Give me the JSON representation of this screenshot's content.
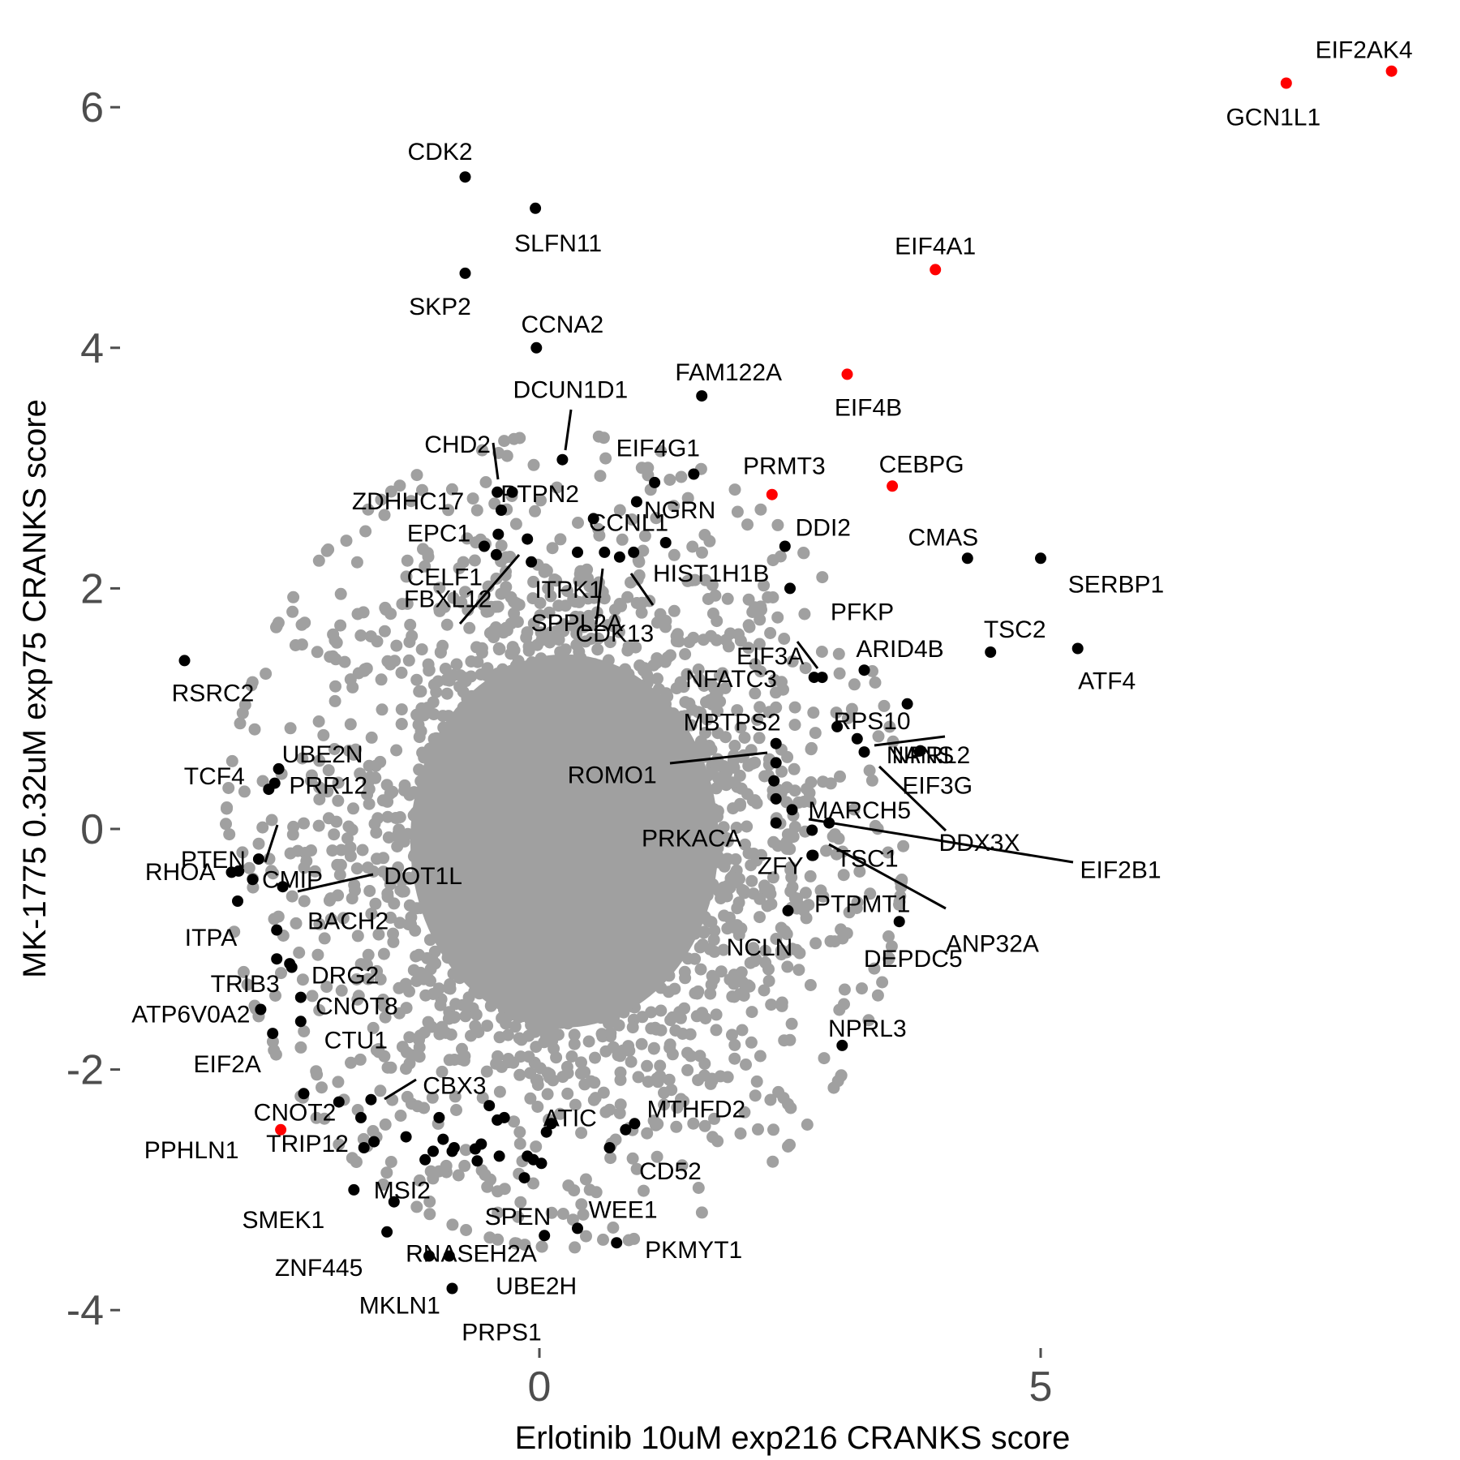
{
  "chart_data": {
    "type": "scatter",
    "xlabel": "Erlotinib 10uM exp216 CRANKS score",
    "ylabel": "MK-1775 0.32uM exp75 CRANKS score",
    "xlim": [
      -5.35,
      9.05
    ],
    "ylim": [
      -4.3,
      6.62
    ],
    "x_ticks": [
      0,
      5
    ],
    "x_tick_labels": [
      "0",
      "5"
    ],
    "y_ticks": [
      -4,
      -2,
      0,
      2,
      4,
      6
    ],
    "y_tick_labels": [
      "-4",
      "-2",
      "0",
      "2",
      "4",
      "6"
    ],
    "grid": false,
    "legend": "none",
    "colors": {
      "background_points": "#a0a0a0",
      "highlighted": "#000000",
      "red": "#ff0000",
      "axis_text": "#4d4d4d"
    },
    "background_cloud": {
      "description": "dense gray point cloud",
      "center": [
        0.25,
        -0.1
      ],
      "spread": [
        1.3,
        1.3
      ],
      "n": 2600
    },
    "labeled_points": [
      {
        "label": "EIF2AK4",
        "x": 8.5,
        "y": 6.3,
        "color": "red"
      },
      {
        "label": "GCN1L1",
        "x": 7.45,
        "y": 6.2,
        "color": "red"
      },
      {
        "label": "EIF4A1",
        "x": 3.95,
        "y": 4.65,
        "color": "red"
      },
      {
        "label": "EIF4B",
        "x": 3.07,
        "y": 3.78,
        "color": "red"
      },
      {
        "label": "CEBPG",
        "x": 3.52,
        "y": 2.85,
        "color": "red"
      },
      {
        "label": "PRMT3",
        "x": 2.32,
        "y": 2.78,
        "color": "red"
      },
      {
        "label": "PPHLN1",
        "x": -2.58,
        "y": -2.5,
        "color": "red"
      },
      {
        "label": "CDK2",
        "x": -0.74,
        "y": 5.42,
        "color": "black"
      },
      {
        "label": "SLFN11",
        "x": -0.04,
        "y": 5.16,
        "color": "black"
      },
      {
        "label": "SKP2",
        "x": -0.74,
        "y": 4.62,
        "color": "black"
      },
      {
        "label": "CCNA2",
        "x": -0.03,
        "y": 4.0,
        "color": "black"
      },
      {
        "label": "FAM122A",
        "x": 1.62,
        "y": 3.6,
        "color": "black"
      },
      {
        "label": "DCUN1D1",
        "x": 0.23,
        "y": 3.07,
        "color": "black"
      },
      {
        "label": "EIF4G1",
        "x": 1.54,
        "y": 2.95,
        "color": "black"
      },
      {
        "label": "CHD2",
        "x": -0.42,
        "y": 2.8,
        "color": "black"
      },
      {
        "label": "ZDHHC17",
        "x": -0.38,
        "y": 2.65,
        "color": "black"
      },
      {
        "label": "PTPN2",
        "x": -0.27,
        "y": 2.8,
        "color": "black"
      },
      {
        "label": "NGRN",
        "x": 1.15,
        "y": 2.88,
        "color": "black"
      },
      {
        "label": "CCNL1",
        "x": 0.97,
        "y": 2.72,
        "color": "black"
      },
      {
        "label": "DDI2",
        "x": 2.45,
        "y": 2.35,
        "color": "black"
      },
      {
        "label": "CMAS",
        "x": 4.27,
        "y": 2.25,
        "color": "black"
      },
      {
        "label": "SERBP1",
        "x": 5.0,
        "y": 2.25,
        "color": "black"
      },
      {
        "label": "EPC1",
        "x": -0.55,
        "y": 2.35,
        "color": "black"
      },
      {
        "label": "CELF1",
        "x": -0.41,
        "y": 2.45,
        "color": "black"
      },
      {
        "label": "ITPK1",
        "x": 0.38,
        "y": 2.3,
        "color": "black"
      },
      {
        "label": "HIST1H1B",
        "x": 1.26,
        "y": 2.38,
        "color": "black"
      },
      {
        "label": "FBXL12",
        "x": -0.12,
        "y": 2.41,
        "color": "black"
      },
      {
        "label": "SPPL2A",
        "x": 0.65,
        "y": 2.3,
        "color": "black"
      },
      {
        "label": "CDK13",
        "x": 0.8,
        "y": 2.26,
        "color": "black"
      },
      {
        "label": "PFKP",
        "x": 2.5,
        "y": 2.0,
        "color": "black"
      },
      {
        "label": "TSC2",
        "x": 4.5,
        "y": 1.47,
        "color": "black"
      },
      {
        "label": "ATF4",
        "x": 5.37,
        "y": 1.5,
        "color": "black"
      },
      {
        "label": "EIF3A",
        "x": 2.74,
        "y": 1.26,
        "color": "black"
      },
      {
        "label": "ARID4B",
        "x": 3.24,
        "y": 1.32,
        "color": "black"
      },
      {
        "label": "NFATC3",
        "x": 2.82,
        "y": 1.26,
        "color": "black"
      },
      {
        "label": "RSRC2",
        "x": -3.54,
        "y": 1.4,
        "color": "black"
      },
      {
        "label": "NANS",
        "x": 3.67,
        "y": 1.04,
        "color": "black"
      },
      {
        "label": "RPS10",
        "x": 2.97,
        "y": 0.85,
        "color": "black"
      },
      {
        "label": "NPRL2",
        "x": 3.17,
        "y": 0.75,
        "color": "black"
      },
      {
        "label": "EIF3G",
        "x": 3.8,
        "y": 0.65,
        "color": "black"
      },
      {
        "label": "DDX3X",
        "x": 3.24,
        "y": 0.64,
        "color": "black"
      },
      {
        "label": "MBTPS2",
        "x": 2.36,
        "y": 0.71,
        "color": "black"
      },
      {
        "label": "ROMO1",
        "x": 2.36,
        "y": 0.55,
        "color": "black"
      },
      {
        "label": "MARCH5",
        "x": 2.36,
        "y": 0.25,
        "color": "black"
      },
      {
        "label": "PRKACA",
        "x": 2.36,
        "y": 0.05,
        "color": "black"
      },
      {
        "label": "EIF2B1",
        "x": 2.52,
        "y": 0.16,
        "color": "black"
      },
      {
        "label": "ZFY",
        "x": 2.72,
        "y": -0.01,
        "color": "black"
      },
      {
        "label": "TSC1",
        "x": 2.89,
        "y": 0.05,
        "color": "black"
      },
      {
        "label": "ANP32A",
        "x": 2.73,
        "y": -0.22,
        "color": "black"
      },
      {
        "label": "PTPMT1",
        "x": 2.72,
        "y": -0.22,
        "color": "black"
      },
      {
        "label": "NCLN",
        "x": 2.48,
        "y": -0.68,
        "color": "black"
      },
      {
        "label": "DEPDC5",
        "x": 3.59,
        "y": -0.77,
        "color": "black"
      },
      {
        "label": "NPRL3",
        "x": 3.02,
        "y": -1.8,
        "color": "black"
      },
      {
        "label": "UBE2N",
        "x": -2.6,
        "y": 0.5,
        "color": "black"
      },
      {
        "label": "TCF4",
        "x": -2.7,
        "y": 0.33,
        "color": "black"
      },
      {
        "label": "PTEN",
        "x": -2.8,
        "y": -0.25,
        "color": "black"
      },
      {
        "label": "PRR12",
        "x": -2.64,
        "y": 0.38,
        "color": "black"
      },
      {
        "label": "RHOA",
        "x": -3.0,
        "y": -0.35,
        "color": "black"
      },
      {
        "label": "CMIP",
        "x": -2.86,
        "y": -0.42,
        "color": "black"
      },
      {
        "label": "DOT1L",
        "x": -2.56,
        "y": -0.48,
        "color": "black"
      },
      {
        "label": "ITPA",
        "x": -3.01,
        "y": -0.6,
        "color": "black"
      },
      {
        "label": "BACH2",
        "x": -2.62,
        "y": -0.84,
        "color": "black"
      },
      {
        "label": "DRG2",
        "x": -2.47,
        "y": -1.15,
        "color": "black"
      },
      {
        "label": "TRIB3",
        "x": -2.62,
        "y": -1.08,
        "color": "black"
      },
      {
        "label": "CNOT8",
        "x": -2.38,
        "y": -1.4,
        "color": "black"
      },
      {
        "label": "ATP6V0A2",
        "x": -2.78,
        "y": -1.5,
        "color": "black"
      },
      {
        "label": "EIF2A",
        "x": -2.66,
        "y": -1.7,
        "color": "black"
      },
      {
        "label": "CTU1",
        "x": -2.38,
        "y": -1.6,
        "color": "black"
      },
      {
        "label": "CNOT2",
        "x": -2.35,
        "y": -2.2,
        "color": "black"
      },
      {
        "label": "CBX3",
        "x": -1.68,
        "y": -2.25,
        "color": "black"
      },
      {
        "label": "TRIP12",
        "x": -1.78,
        "y": -2.4,
        "color": "black"
      },
      {
        "label": "SMEK1",
        "x": -1.85,
        "y": -3.0,
        "color": "black"
      },
      {
        "label": "MSI2",
        "x": -1.45,
        "y": -3.1,
        "color": "black"
      },
      {
        "label": "ZNF445",
        "x": -1.52,
        "y": -3.35,
        "color": "black"
      },
      {
        "label": "RNASEH2A",
        "x": -1.1,
        "y": -3.55,
        "color": "black"
      },
      {
        "label": "MKLN1",
        "x": -0.9,
        "y": -3.55,
        "color": "black"
      },
      {
        "label": "PRPS1",
        "x": -0.87,
        "y": -3.82,
        "color": "black"
      },
      {
        "label": "ATIC",
        "x": 0.12,
        "y": -2.45,
        "color": "black"
      },
      {
        "label": "MTHFD2",
        "x": 0.95,
        "y": -2.45,
        "color": "black"
      },
      {
        "label": "CD52",
        "x": 0.7,
        "y": -2.65,
        "color": "black"
      },
      {
        "label": "SPEN",
        "x": -0.15,
        "y": -2.9,
        "color": "black"
      },
      {
        "label": "WEE1",
        "x": 0.38,
        "y": -3.32,
        "color": "black"
      },
      {
        "label": "PKMYT1",
        "x": 0.77,
        "y": -3.44,
        "color": "black"
      },
      {
        "label": "UBE2H",
        "x": 0.05,
        "y": -3.38,
        "color": "black"
      }
    ],
    "unlabeled_black_points": [
      {
        "x": -0.43,
        "y": 2.28
      },
      {
        "x": -0.08,
        "y": 2.22
      },
      {
        "x": 0.54,
        "y": 2.58
      },
      {
        "x": 0.94,
        "y": 2.3
      },
      {
        "x": 2.34,
        "y": 0.4
      },
      {
        "x": -3.07,
        "y": -0.36
      },
      {
        "x": -2.49,
        "y": -1.12
      },
      {
        "x": -2.0,
        "y": -2.27
      },
      {
        "x": -1.75,
        "y": -2.65
      },
      {
        "x": -1.65,
        "y": -2.6
      },
      {
        "x": -1.0,
        "y": -2.4
      },
      {
        "x": -0.96,
        "y": -2.58
      },
      {
        "x": -0.85,
        "y": -2.65
      },
      {
        "x": -1.06,
        "y": -2.68
      },
      {
        "x": -1.14,
        "y": -2.75
      },
      {
        "x": -0.58,
        "y": -2.62
      },
      {
        "x": -0.42,
        "y": -2.42
      },
      {
        "x": -0.5,
        "y": -2.3
      },
      {
        "x": -0.35,
        "y": -2.4
      },
      {
        "x": -0.12,
        "y": -2.72
      },
      {
        "x": -0.06,
        "y": -2.75
      },
      {
        "x": 0.02,
        "y": -2.78
      },
      {
        "x": 0.07,
        "y": -2.52
      },
      {
        "x": -0.62,
        "y": -2.76
      },
      {
        "x": -0.4,
        "y": -2.72
      },
      {
        "x": -0.87,
        "y": -2.68
      },
      {
        "x": 0.86,
        "y": -2.5
      },
      {
        "x": -0.64,
        "y": -2.66
      },
      {
        "x": -1.33,
        "y": -2.56
      }
    ]
  }
}
